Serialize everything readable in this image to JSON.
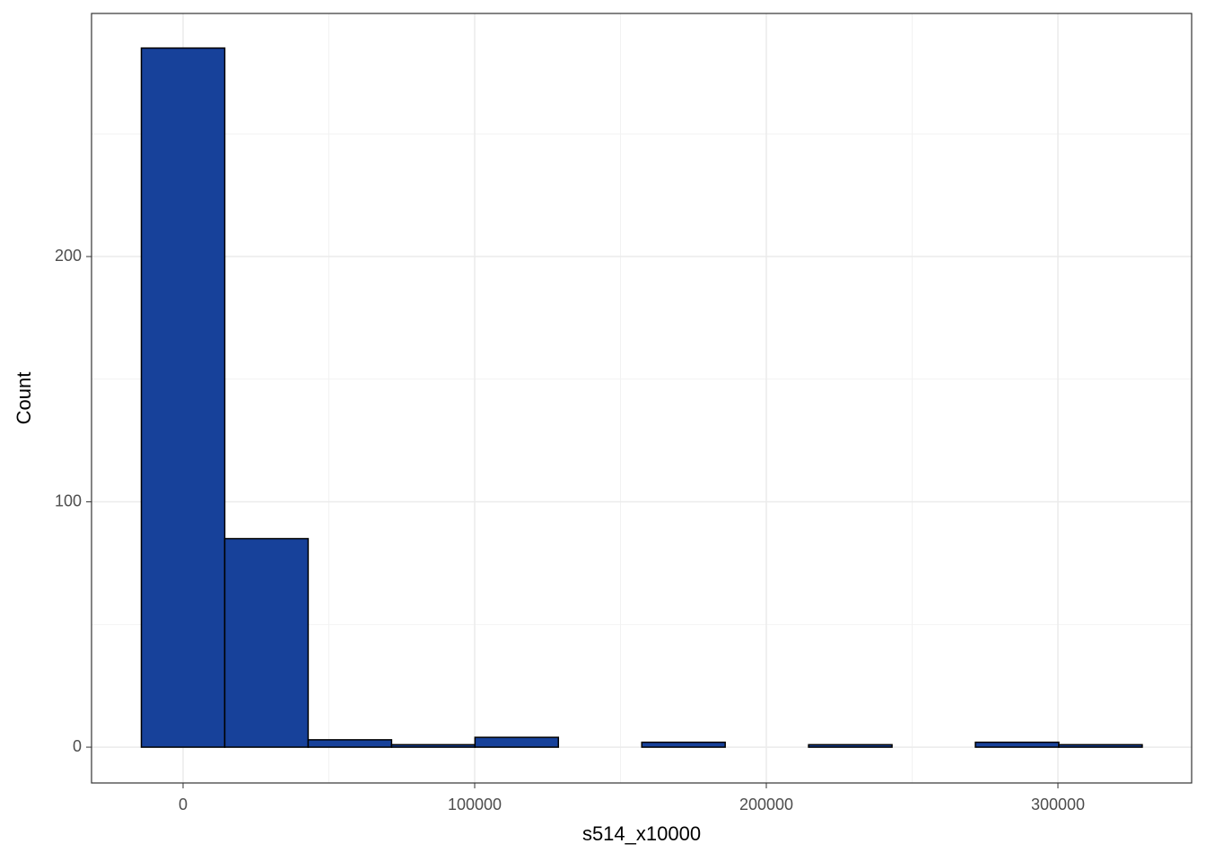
{
  "chart_data": {
    "type": "histogram",
    "x_label": "s514_x10000",
    "y_label": "Count",
    "bins": [
      -14300,
      14300,
      42900,
      71500,
      100100,
      128700,
      157300,
      185900,
      214500,
      243100,
      271700,
      300300,
      328900
    ],
    "values": [
      285,
      85,
      3,
      1,
      4,
      0,
      2,
      0,
      1,
      0,
      2,
      1
    ],
    "color": "#17419a",
    "edgecolor": "#000000",
    "xlim": [
      -31385,
      345846
    ],
    "ylim": [
      -14.6,
      299.1
    ],
    "xticks": [
      0,
      100000,
      200000,
      300000
    ],
    "yticks": [
      0,
      100,
      200
    ],
    "x_minor_ticks": [
      50000,
      150000,
      250000
    ],
    "y_minor_ticks": [
      50,
      150,
      250
    ],
    "grid": true
  }
}
